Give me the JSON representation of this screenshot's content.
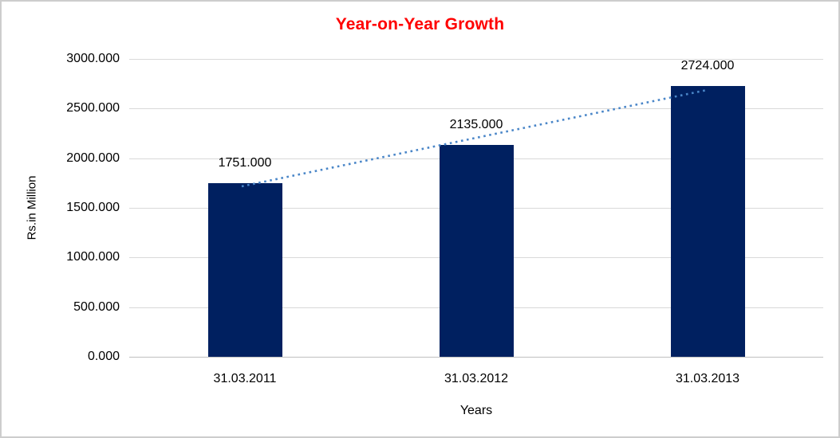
{
  "frame": {
    "background": "#ffffff",
    "border_color": "#cdcdcd"
  },
  "chart_data": {
    "type": "bar",
    "title": "Year-on-Year Growth",
    "title_color": "#ff0000",
    "xlabel": "Years",
    "ylabel": "Rs.in Million",
    "categories": [
      "31.03.2011",
      "31.03.2012",
      "31.03.2013"
    ],
    "values": [
      1751,
      2135,
      2724
    ],
    "data_labels": [
      "1751.000",
      "2135.000",
      "2724.000"
    ],
    "y_ticks": [
      {
        "value": 0,
        "label": "0.000"
      },
      {
        "value": 500,
        "label": "500.000"
      },
      {
        "value": 1000,
        "label": "1000.000"
      },
      {
        "value": 1500,
        "label": "1500.000"
      },
      {
        "value": 2000,
        "label": "2000.000"
      },
      {
        "value": 2500,
        "label": "2500.000"
      },
      {
        "value": 3000,
        "label": "3000.000"
      }
    ],
    "ylim": [
      0,
      3000
    ],
    "bar_color": "#002060",
    "gridlines": true,
    "gridline_color": "#d9d9d9",
    "axis_line_color": "#bfbfbf",
    "trendline": {
      "type": "linear",
      "style": "dotted",
      "color": "#4a86c8"
    },
    "legend_position": "none"
  }
}
